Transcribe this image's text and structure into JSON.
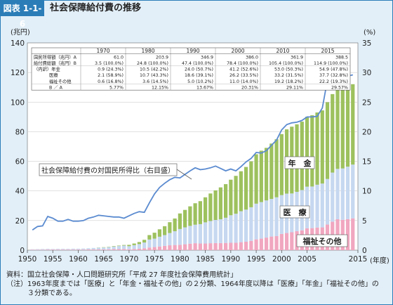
{
  "figure": {
    "id": "図表 1-1-6",
    "title": "社会保障給付費の推移"
  },
  "notes": [
    {
      "key": "資料：",
      "text": "国立社会保障・人口問題研究所「平成 27 年度社会保障費用統計」"
    },
    {
      "key": "（注）",
      "text": "1963年度までは「医療」と「年金・福祉その他」の２分類、1964年度以降は「医療」「年金」「福祉その他」の３分類である。"
    }
  ],
  "chart_data": {
    "type": "bar",
    "left_axis_unit": "(兆円)",
    "right_axis_unit": "(%)",
    "x_unit": "(年度)",
    "xlim": [
      1950,
      2015
    ],
    "ylim_left": [
      0,
      140
    ],
    "ylim_right": [
      0,
      35
    ],
    "x_ticks": [
      "1950",
      "1955",
      "1960",
      "1965",
      "1970",
      "1975",
      "1980",
      "1985",
      "1990",
      "1995",
      "2000",
      "2005",
      "2015"
    ],
    "x_tick_values": [
      1950,
      1955,
      1960,
      1965,
      1970,
      1975,
      1980,
      1985,
      1990,
      1995,
      2000,
      2005,
      2015
    ],
    "y_left_ticks": [
      "0",
      "20",
      "40",
      "60",
      "80",
      "100",
      "120",
      "140"
    ],
    "y_left_tick_values": [
      0,
      20,
      40,
      60,
      80,
      100,
      120,
      140
    ],
    "y_right_ticks": [
      "0",
      "5",
      "10",
      "15",
      "20",
      "25",
      "30",
      "35"
    ],
    "y_right_tick_values": [
      0,
      5,
      10,
      15,
      20,
      25,
      30,
      35
    ],
    "series_labels": {
      "pension": "年　金",
      "medical": "医　療",
      "welfare": "福祉その他",
      "ratio": "社会保障給付費の対国民所得比（右目盛）"
    },
    "colors": {
      "pension": "#9dc15e",
      "medical": "#c6d8f0",
      "welfare": "#f1a7c0",
      "ratio_line": "#5b8bd0",
      "plot_bg": "#ffffff",
      "accent": "#2b7db8"
    },
    "years": [
      1951,
      1952,
      1953,
      1954,
      1955,
      1956,
      1957,
      1958,
      1959,
      1960,
      1961,
      1962,
      1963,
      1964,
      1965,
      1966,
      1967,
      1968,
      1969,
      1970,
      1971,
      1972,
      1973,
      1974,
      1975,
      1976,
      1977,
      1978,
      1979,
      1980,
      1981,
      1982,
      1983,
      1984,
      1985,
      1986,
      1987,
      1988,
      1989,
      1990,
      1991,
      1992,
      1993,
      1994,
      1995,
      1996,
      1997,
      1998,
      1999,
      2000,
      2001,
      2002,
      2003,
      2004,
      2005,
      2006,
      2007,
      2008,
      2009,
      2010,
      2011,
      2012,
      2013,
      2014
    ],
    "medical": [
      0.3,
      0.4,
      0.5,
      0.5,
      0.4,
      0.5,
      0.5,
      0.5,
      0.6,
      0.6,
      0.7,
      0.8,
      1.0,
      1.2,
      1.3,
      1.5,
      1.8,
      2.1,
      2.3,
      2.1,
      2.6,
      3.1,
      3.9,
      5.4,
      5.7,
      6.6,
      7.3,
      8.3,
      9.3,
      10.7,
      11.4,
      12.0,
      12.5,
      13.1,
      14.3,
      15.0,
      15.6,
      16.1,
      17.0,
      18.6,
      19.6,
      20.9,
      21.7,
      22.7,
      24.1,
      24.7,
      25.1,
      25.4,
      26.2,
      26.2,
      26.6,
      26.2,
      26.6,
      27.2,
      28.1,
      28.1,
      28.9,
      29.6,
      30.8,
      33.2,
      34.0,
      34.7,
      35.4,
      36.3
    ],
    "pension": [
      0.0,
      0.0,
      0.0,
      0.0,
      0.0,
      0.0,
      0.0,
      0.0,
      0.0,
      0.0,
      0.0,
      0.0,
      0.0,
      0.1,
      0.2,
      0.2,
      0.3,
      0.3,
      0.4,
      0.9,
      1.1,
      1.4,
      1.8,
      3.0,
      4.0,
      5.0,
      6.0,
      7.3,
      8.6,
      10.5,
      11.8,
      13.2,
      14.5,
      15.5,
      16.9,
      18.6,
      20.0,
      21.5,
      22.7,
      24.0,
      25.6,
      27.0,
      28.8,
      31.0,
      33.4,
      34.7,
      35.5,
      37.4,
      39.2,
      41.2,
      43.4,
      45.1,
      45.6,
      46.2,
      47.2,
      48.1,
      48.8,
      49.4,
      51.8,
      53.0,
      53.1,
      53.9,
      54.6,
      54.3
    ],
    "welfare": [
      0.3,
      0.3,
      0.3,
      0.4,
      0.4,
      0.4,
      0.4,
      0.4,
      0.4,
      0.4,
      0.4,
      0.5,
      0.5,
      0.5,
      0.5,
      0.6,
      0.7,
      0.7,
      0.8,
      0.6,
      0.8,
      1.0,
      1.3,
      1.8,
      2.1,
      2.5,
      2.9,
      3.3,
      3.5,
      3.6,
      4.0,
      4.4,
      4.7,
      4.5,
      4.5,
      4.7,
      4.8,
      4.8,
      4.9,
      5.0,
      5.0,
      5.4,
      5.7,
      6.3,
      7.3,
      7.8,
      8.5,
      9.2,
      9.5,
      11.0,
      11.6,
      12.1,
      12.8,
      13.4,
      14.8,
      14.9,
      15.3,
      15.4,
      17.3,
      19.2,
      20.9,
      20.5,
      21.0,
      21.5
    ],
    "ratio": [
      3.4,
      4.0,
      4.1,
      5.7,
      5.4,
      4.9,
      4.9,
      5.2,
      4.9,
      4.9,
      5.0,
      5.4,
      5.6,
      5.9,
      5.8,
      5.7,
      5.6,
      5.6,
      5.4,
      5.8,
      6.2,
      6.5,
      6.4,
      8.0,
      9.5,
      10.6,
      11.3,
      11.9,
      12.3,
      12.2,
      12.8,
      13.4,
      13.9,
      13.6,
      13.7,
      13.9,
      14.2,
      13.8,
      13.4,
      13.7,
      13.4,
      14.1,
      14.9,
      15.5,
      16.5,
      16.4,
      16.8,
      17.7,
      18.6,
      20.3,
      21.2,
      21.5,
      21.6,
      21.9,
      22.5,
      22.5,
      22.6,
      24.0,
      28.7,
      29.1,
      30.3,
      30.4,
      29.4,
      29.6
    ],
    "table": {
      "header": [
        "",
        "1970",
        "1980",
        "1990",
        "2000",
        "2010",
        "2015"
      ],
      "rows": [
        {
          "label": "国民所得額（兆円）A",
          "cells": [
            "61.0",
            "203.9",
            "346.9",
            "386.0",
            "361.9",
            "388.5"
          ]
        },
        {
          "label": "給付費総額（兆円）B",
          "cells": [
            "3.5 (100.0%)",
            "24.8 (100.0%)",
            "47.4 (100.0%)",
            "78.4 (100.0%)",
            "105.4 (100.0%)",
            "114.9 (100.0%)"
          ]
        },
        {
          "label": "（内訳）年金",
          "cells": [
            "0.9 (24.3%)",
            "10.5 (42.2%)",
            "24.0 (50.7%)",
            "41.2 (52.6%)",
            "53.0 (50.3%)",
            "54.9 (47.8%)"
          ]
        },
        {
          "label": "医療",
          "cells": [
            "2.1 (58.9%)",
            "10.7 (43.3%)",
            "18.6 (39.1%)",
            "26.2 (33.5%)",
            "33.2 (31.5%)",
            "37.7 (32.8%)"
          ]
        },
        {
          "label": "福祉その他",
          "cells": [
            "0.6 (16.8%)",
            "3.6 (14.5%)",
            "5.0 (10.2%)",
            "11.0 (14.0%)",
            "19.2 (18.2%)",
            "22.2 (19.3%)"
          ]
        },
        {
          "label": "B ／ A",
          "cells": [
            "5.77%",
            "12.15%",
            "13.67%",
            "20.31%",
            "29.11%",
            "29.57%"
          ]
        }
      ]
    }
  }
}
